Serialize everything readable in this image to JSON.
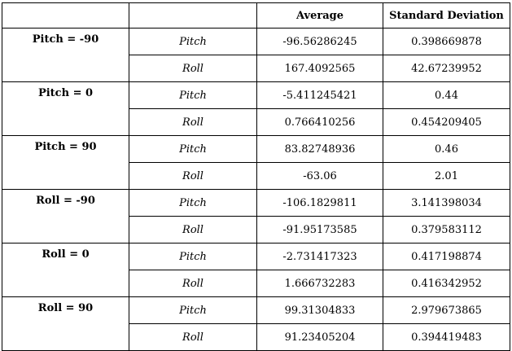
{
  "table": {
    "headers": [
      "",
      "",
      "Average",
      "Standard Deviation"
    ],
    "groups": [
      {
        "label": "Pitch = -90",
        "rows": [
          {
            "axis": "Pitch",
            "average": "-96.56286245",
            "std": "0.398669878"
          },
          {
            "axis": "Roll",
            "average": "167.4092565",
            "std": "42.67239952"
          }
        ]
      },
      {
        "label": "Pitch = 0",
        "rows": [
          {
            "axis": "Pitch",
            "average": "-5.411245421",
            "std": "0.44"
          },
          {
            "axis": "Roll",
            "average": "0.766410256",
            "std": "0.454209405"
          }
        ]
      },
      {
        "label": "Pitch = 90",
        "rows": [
          {
            "axis": "Pitch",
            "average": "83.82748936",
            "std": "0.46"
          },
          {
            "axis": "Roll",
            "average": "-63.06",
            "std": "2.01"
          }
        ]
      },
      {
        "label": "Roll = -90",
        "rows": [
          {
            "axis": "Pitch",
            "average": "-106.1829811",
            "std": "3.141398034"
          },
          {
            "axis": "Roll",
            "average": "-91.95173585",
            "std": "0.379583112"
          }
        ]
      },
      {
        "label": "Roll = 0",
        "rows": [
          {
            "axis": "Pitch",
            "average": "-2.731417323",
            "std": "0.417198874"
          },
          {
            "axis": "Roll",
            "average": "1.666732283",
            "std": "0.416342952"
          }
        ]
      },
      {
        "label": "Roll = 90",
        "rows": [
          {
            "axis": "Pitch",
            "average": "99.31304833",
            "std": "2.979673865"
          },
          {
            "axis": "Roll",
            "average": "91.23405204",
            "std": "0.394419483"
          }
        ]
      }
    ]
  }
}
